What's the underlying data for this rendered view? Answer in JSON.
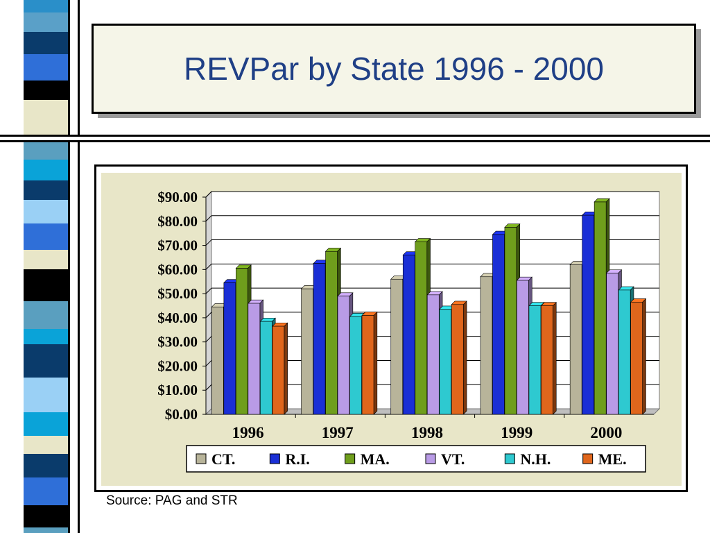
{
  "slide": {
    "title": "REVPar by State 1996 - 2000",
    "source": "Source: PAG and STR"
  },
  "chart_data": {
    "type": "bar",
    "title": "",
    "xlabel": "",
    "ylabel": "",
    "ylim": [
      0,
      90
    ],
    "yticks": [
      "$0.00",
      "$10.00",
      "$20.00",
      "$30.00",
      "$40.00",
      "$50.00",
      "$60.00",
      "$70.00",
      "$80.00",
      "$90.00"
    ],
    "grid": true,
    "legend_placement": "bottom",
    "categories": [
      "1996",
      "1997",
      "1998",
      "1999",
      "2000"
    ],
    "series": [
      {
        "name": "CT.",
        "color": "#b8b49a",
        "values": [
          44.5,
          52.0,
          56.0,
          57.0,
          62.0
        ]
      },
      {
        "name": "R.I.",
        "color": "#1a2fd6",
        "values": [
          54.5,
          62.5,
          66.0,
          74.5,
          82.5
        ]
      },
      {
        "name": "MA.",
        "color": "#6f9e1c",
        "values": [
          60.5,
          67.5,
          71.5,
          77.5,
          88.0
        ]
      },
      {
        "name": "VT.",
        "color": "#b99be6",
        "values": [
          46.0,
          49.0,
          49.5,
          55.5,
          58.5
        ]
      },
      {
        "name": "N.H.",
        "color": "#2ec9d0",
        "values": [
          38.5,
          40.5,
          43.5,
          45.0,
          51.5
        ]
      },
      {
        "name": "ME.",
        "color": "#e0661c",
        "values": [
          36.5,
          41.0,
          45.5,
          45.0,
          46.5
        ]
      }
    ]
  }
}
